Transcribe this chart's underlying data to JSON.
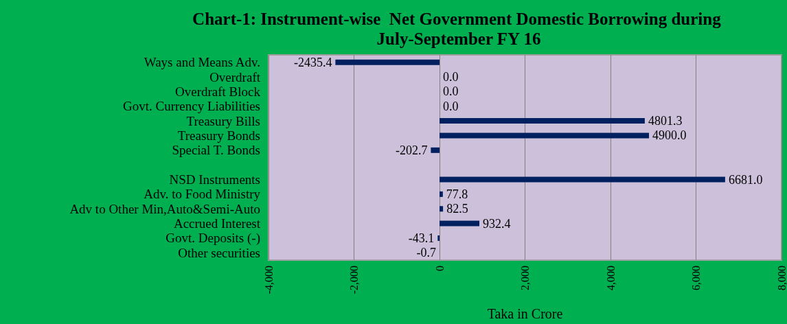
{
  "chart_data": {
    "type": "bar",
    "orientation": "horizontal",
    "title": "Chart-1: Instrument-wise  Net Government Domestic Borrowing during July-September FY 16",
    "xlabel": "Taka in Crore",
    "categories": [
      "Ways and Means Adv.",
      "Overdraft",
      "Overdraft Block",
      "Govt. Currency Liabilities",
      "Treasury Bills",
      "Treasury Bonds",
      "Special T. Bonds",
      null,
      "NSD Instruments",
      "Adv. to Food Ministry",
      "Adv to Other Min,Auto&Semi-Auto",
      "Accrued Interest",
      "Govt. Deposits (-)",
      "Other securities"
    ],
    "values": [
      -2435.4,
      0,
      0,
      0,
      4801.3,
      4900.0,
      -202.7,
      null,
      6681.0,
      77.8,
      82.5,
      932.4,
      -43.1,
      -0.7
    ],
    "value_labels": [
      "-2435.4",
      "0.0",
      "0.0",
      "0.0",
      "4801.3",
      "4900.0",
      "-202.7",
      null,
      "6681.0",
      "77.8",
      "82.5",
      "932.4",
      "-43.1",
      "-0.7"
    ],
    "color": "#002060",
    "xlim": [
      -4000,
      8000
    ],
    "xticks": [
      {
        "value": -4000,
        "label": "-4,000"
      },
      {
        "value": -2000,
        "label": "-2,000"
      },
      0,
      {
        "value": 2000,
        "label": "2,000"
      },
      {
        "value": 4000,
        "label": "4,000"
      },
      {
        "value": 6000,
        "label": "6,000"
      },
      {
        "value": 8000,
        "label": "8,000"
      }
    ],
    "grid": "x"
  }
}
